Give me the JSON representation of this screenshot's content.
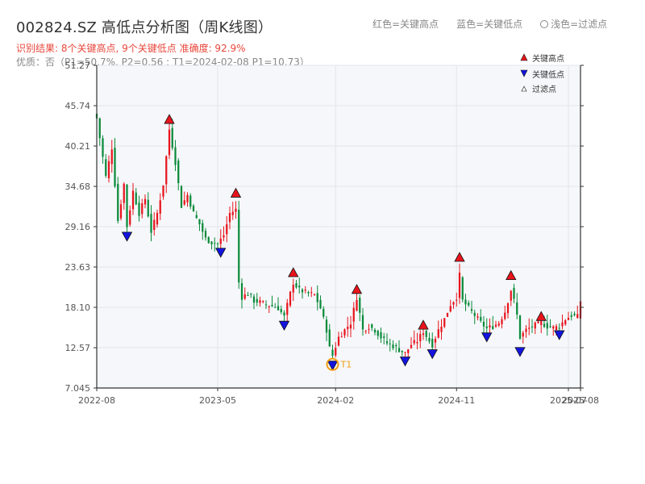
{
  "header": {
    "title": "002824.SZ 高低点分析图（周K线图）",
    "result_line": "识别结果: 8个关键高点, 9个关键低点  准确度: 92.9%",
    "quality_line": "优质：否（P1=50.7%, P2=0.56 ; T1=2024-02-08 P1=10.73）"
  },
  "top_legend": {
    "red": "红色=关键高点",
    "blue": "蓝色=关键低点",
    "light": "浅色=过滤点"
  },
  "colors": {
    "up": "#e8141c",
    "down": "#0a8a3a",
    "high_marker": "#e8141c",
    "low_marker": "#1414e0",
    "t1": "#f39c12"
  },
  "chart_data": {
    "type": "candlestick",
    "y_ticks": [
      "7.045",
      "12.57",
      "18.10",
      "23.63",
      "29.16",
      "34.68",
      "40.21",
      "45.74",
      "51.27"
    ],
    "ylim": [
      7.045,
      51.27
    ],
    "x_ticks": [
      {
        "label": "2022-08",
        "week": 0
      },
      {
        "label": "2023-05",
        "week": 40
      },
      {
        "label": "2024-02",
        "week": 79
      },
      {
        "label": "2024-11",
        "week": 119
      },
      {
        "label": "2025-07",
        "week": 156
      },
      {
        "label": "2025-08",
        "week": 160
      }
    ],
    "weeks_total": 160,
    "legend": {
      "high": "关键高点",
      "low": "关键低点",
      "filtered": "过滤点"
    },
    "t1_label": "T1",
    "t1": {
      "week": 78,
      "price": 10.73
    },
    "key_highs": [
      {
        "week": 24,
        "price": 43.3
      },
      {
        "week": 46,
        "price": 33.2
      },
      {
        "week": 65,
        "price": 22.3
      },
      {
        "week": 86,
        "price": 20.0
      },
      {
        "week": 108,
        "price": 15.1
      },
      {
        "week": 120,
        "price": 24.4
      },
      {
        "week": 137,
        "price": 21.9
      },
      {
        "week": 147,
        "price": 16.3
      }
    ],
    "key_lows": [
      {
        "week": 10,
        "price": 28.4
      },
      {
        "week": 41,
        "price": 26.2
      },
      {
        "week": 62,
        "price": 16.2
      },
      {
        "week": 78,
        "price": 10.73
      },
      {
        "week": 102,
        "price": 11.3
      },
      {
        "week": 111,
        "price": 12.3
      },
      {
        "week": 129,
        "price": 14.6
      },
      {
        "week": 140,
        "price": 12.6
      },
      {
        "week": 153,
        "price": 14.9
      }
    ],
    "close_path": [
      [
        0,
        44.0
      ],
      [
        3,
        36.0
      ],
      [
        5,
        40.0
      ],
      [
        7,
        30.0
      ],
      [
        9,
        35.0
      ],
      [
        10,
        29.2
      ],
      [
        12,
        34.0
      ],
      [
        14,
        31.0
      ],
      [
        16,
        33.0
      ],
      [
        18,
        28.5
      ],
      [
        20,
        31.0
      ],
      [
        22,
        35.0
      ],
      [
        24,
        42.5
      ],
      [
        26,
        38.0
      ],
      [
        28,
        32.0
      ],
      [
        30,
        33.5
      ],
      [
        32,
        31.0
      ],
      [
        34,
        29.5
      ],
      [
        36,
        27.5
      ],
      [
        38,
        27.0
      ],
      [
        40,
        26.8
      ],
      [
        42,
        28.0
      ],
      [
        44,
        31.0
      ],
      [
        46,
        31.5
      ],
      [
        47,
        21.5
      ],
      [
        48,
        19.5
      ],
      [
        50,
        20.0
      ],
      [
        52,
        19.0
      ],
      [
        54,
        18.8
      ],
      [
        56,
        18.5
      ],
      [
        58,
        18.3
      ],
      [
        60,
        18.0
      ],
      [
        62,
        16.8
      ],
      [
        64,
        20.0
      ],
      [
        65,
        21.5
      ],
      [
        67,
        20.5
      ],
      [
        70,
        20.0
      ],
      [
        72,
        19.8
      ],
      [
        74,
        18.0
      ],
      [
        76,
        15.0
      ],
      [
        77,
        12.5
      ],
      [
        78,
        11.5
      ],
      [
        80,
        14.0
      ],
      [
        82,
        15.0
      ],
      [
        84,
        16.0
      ],
      [
        86,
        19.5
      ],
      [
        88,
        15.0
      ],
      [
        90,
        15.5
      ],
      [
        92,
        15.0
      ],
      [
        94,
        14.0
      ],
      [
        96,
        13.2
      ],
      [
        98,
        12.8
      ],
      [
        100,
        12.3
      ],
      [
        102,
        11.8
      ],
      [
        104,
        13.0
      ],
      [
        106,
        13.5
      ],
      [
        108,
        14.8
      ],
      [
        110,
        13.5
      ],
      [
        111,
        13.0
      ],
      [
        113,
        15.0
      ],
      [
        115,
        16.5
      ],
      [
        117,
        18.5
      ],
      [
        119,
        19.5
      ],
      [
        120,
        22.5
      ],
      [
        121,
        19.0
      ],
      [
        123,
        18.0
      ],
      [
        125,
        17.0
      ],
      [
        127,
        16.0
      ],
      [
        129,
        15.2
      ],
      [
        131,
        15.5
      ],
      [
        133,
        16.0
      ],
      [
        135,
        17.5
      ],
      [
        137,
        20.5
      ],
      [
        138,
        19.0
      ],
      [
        139,
        17.0
      ],
      [
        140,
        14.0
      ],
      [
        142,
        15.0
      ],
      [
        144,
        15.5
      ],
      [
        146,
        15.8
      ],
      [
        147,
        16.0
      ],
      [
        149,
        15.5
      ],
      [
        151,
        15.3
      ],
      [
        153,
        15.5
      ],
      [
        155,
        16.5
      ],
      [
        157,
        17.0
      ],
      [
        159,
        16.8
      ],
      [
        160,
        19.0
      ]
    ]
  }
}
